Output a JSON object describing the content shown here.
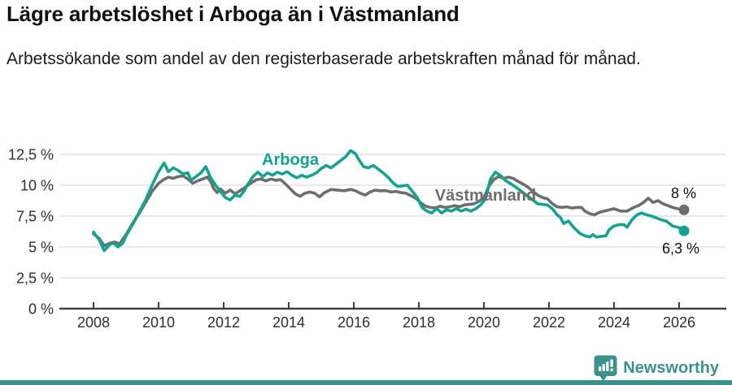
{
  "chart_data": {
    "type": "line",
    "title": "Lägre arbetslöshet i Arboga än i Västmanland",
    "subtitle": "Arbetssökande som andel av den registerbaserade arbetskraften månad för månad.",
    "unit": "%",
    "grid": true,
    "legend": "inline-labels",
    "x_axis": {
      "ticks": [
        2008,
        2010,
        2012,
        2014,
        2016,
        2018,
        2020,
        2022,
        2024,
        2026
      ],
      "range": [
        2007,
        2027.5
      ]
    },
    "y_axis": {
      "tick_values": [
        0,
        2.5,
        5,
        7.5,
        10,
        12.5
      ],
      "tick_labels": [
        "0 %",
        "2,5 %",
        "5 %",
        "7,5 %",
        "10 %",
        "12,5 %"
      ],
      "range": [
        0,
        13.2
      ]
    },
    "series": [
      {
        "name": "Arboga",
        "color": "#14a38f",
        "end_label": "6,3 %",
        "end_value": 6.3,
        "points": [
          [
            2008.0,
            6.2
          ],
          [
            2008.17,
            5.6
          ],
          [
            2008.33,
            4.7
          ],
          [
            2008.5,
            5.2
          ],
          [
            2008.62,
            5.3
          ],
          [
            2008.75,
            5.0
          ],
          [
            2008.9,
            5.3
          ],
          [
            2009.0,
            5.9
          ],
          [
            2009.2,
            6.8
          ],
          [
            2009.4,
            7.8
          ],
          [
            2009.6,
            8.8
          ],
          [
            2009.8,
            10.0
          ],
          [
            2010.0,
            11.1
          ],
          [
            2010.17,
            11.8
          ],
          [
            2010.3,
            11.1
          ],
          [
            2010.45,
            11.4
          ],
          [
            2010.6,
            11.2
          ],
          [
            2010.75,
            10.9
          ],
          [
            2010.9,
            11.0
          ],
          [
            2011.0,
            10.4
          ],
          [
            2011.15,
            10.7
          ],
          [
            2011.3,
            11.0
          ],
          [
            2011.45,
            11.5
          ],
          [
            2011.6,
            10.6
          ],
          [
            2011.75,
            10.0
          ],
          [
            2011.9,
            9.5
          ],
          [
            2012.05,
            9.0
          ],
          [
            2012.2,
            8.8
          ],
          [
            2012.35,
            9.2
          ],
          [
            2012.5,
            9.1
          ],
          [
            2012.62,
            9.5
          ],
          [
            2012.75,
            10.1
          ],
          [
            2012.9,
            10.7
          ],
          [
            2013.05,
            11.05
          ],
          [
            2013.2,
            10.7
          ],
          [
            2013.35,
            11.0
          ],
          [
            2013.5,
            10.8
          ],
          [
            2013.65,
            11.05
          ],
          [
            2013.8,
            10.9
          ],
          [
            2013.95,
            11.1
          ],
          [
            2014.1,
            10.8
          ],
          [
            2014.25,
            10.6
          ],
          [
            2014.4,
            10.8
          ],
          [
            2014.55,
            10.65
          ],
          [
            2014.7,
            10.8
          ],
          [
            2014.85,
            11.0
          ],
          [
            2015.0,
            11.35
          ],
          [
            2015.15,
            11.6
          ],
          [
            2015.3,
            11.4
          ],
          [
            2015.45,
            11.7
          ],
          [
            2015.6,
            12.0
          ],
          [
            2015.75,
            12.3
          ],
          [
            2015.9,
            12.8
          ],
          [
            2016.05,
            12.55
          ],
          [
            2016.15,
            12.1
          ],
          [
            2016.3,
            11.5
          ],
          [
            2016.45,
            11.4
          ],
          [
            2016.6,
            11.6
          ],
          [
            2016.75,
            11.3
          ],
          [
            2016.9,
            11.0
          ],
          [
            2017.05,
            10.65
          ],
          [
            2017.2,
            10.2
          ],
          [
            2017.35,
            9.9
          ],
          [
            2017.5,
            9.95
          ],
          [
            2017.65,
            10.0
          ],
          [
            2017.8,
            9.5
          ],
          [
            2017.95,
            9.0
          ],
          [
            2018.1,
            8.2
          ],
          [
            2018.25,
            7.9
          ],
          [
            2018.4,
            7.75
          ],
          [
            2018.55,
            8.1
          ],
          [
            2018.7,
            7.75
          ],
          [
            2018.85,
            8.0
          ],
          [
            2019.0,
            7.9
          ],
          [
            2019.15,
            8.1
          ],
          [
            2019.3,
            7.9
          ],
          [
            2019.45,
            8.05
          ],
          [
            2019.6,
            7.9
          ],
          [
            2019.75,
            8.1
          ],
          [
            2019.9,
            8.4
          ],
          [
            2020.05,
            8.9
          ],
          [
            2020.2,
            10.5
          ],
          [
            2020.35,
            11.05
          ],
          [
            2020.5,
            10.8
          ],
          [
            2020.65,
            10.4
          ],
          [
            2020.8,
            10.15
          ],
          [
            2020.95,
            9.9
          ],
          [
            2021.1,
            9.6
          ],
          [
            2021.3,
            9.2
          ],
          [
            2021.5,
            8.8
          ],
          [
            2021.65,
            8.5
          ],
          [
            2021.8,
            8.45
          ],
          [
            2021.95,
            8.4
          ],
          [
            2022.1,
            8.1
          ],
          [
            2022.25,
            7.6
          ],
          [
            2022.35,
            7.4
          ],
          [
            2022.45,
            6.9
          ],
          [
            2022.6,
            7.1
          ],
          [
            2022.75,
            6.6
          ],
          [
            2022.95,
            6.1
          ],
          [
            2023.1,
            5.9
          ],
          [
            2023.25,
            5.8
          ],
          [
            2023.35,
            6.0
          ],
          [
            2023.45,
            5.8
          ],
          [
            2023.6,
            5.85
          ],
          [
            2023.75,
            5.9
          ],
          [
            2023.85,
            6.4
          ],
          [
            2024.0,
            6.7
          ],
          [
            2024.15,
            6.8
          ],
          [
            2024.3,
            6.8
          ],
          [
            2024.4,
            6.6
          ],
          [
            2024.55,
            7.2
          ],
          [
            2024.7,
            7.6
          ],
          [
            2024.85,
            7.75
          ],
          [
            2025.0,
            7.6
          ],
          [
            2025.15,
            7.5
          ],
          [
            2025.3,
            7.35
          ],
          [
            2025.45,
            7.2
          ],
          [
            2025.6,
            7.1
          ],
          [
            2025.7,
            6.9
          ],
          [
            2025.8,
            6.7
          ],
          [
            2025.95,
            6.6
          ],
          [
            2026.05,
            6.5
          ],
          [
            2026.15,
            6.3
          ]
        ]
      },
      {
        "name": "Västmanland",
        "color": "#6e6e6e",
        "end_label": "8 %",
        "end_value": 8.0,
        "points": [
          [
            2008.0,
            6.05
          ],
          [
            2008.17,
            5.7
          ],
          [
            2008.33,
            5.1
          ],
          [
            2008.5,
            5.3
          ],
          [
            2008.65,
            5.4
          ],
          [
            2008.8,
            5.25
          ],
          [
            2009.0,
            6.0
          ],
          [
            2009.2,
            6.9
          ],
          [
            2009.4,
            7.7
          ],
          [
            2009.6,
            8.6
          ],
          [
            2009.8,
            9.5
          ],
          [
            2010.0,
            10.15
          ],
          [
            2010.15,
            10.45
          ],
          [
            2010.3,
            10.65
          ],
          [
            2010.45,
            10.55
          ],
          [
            2010.6,
            10.7
          ],
          [
            2010.75,
            10.75
          ],
          [
            2010.9,
            10.5
          ],
          [
            2011.05,
            10.15
          ],
          [
            2011.2,
            10.35
          ],
          [
            2011.35,
            10.5
          ],
          [
            2011.5,
            10.65
          ],
          [
            2011.6,
            10.3
          ],
          [
            2011.7,
            9.7
          ],
          [
            2011.8,
            9.4
          ],
          [
            2011.9,
            9.7
          ],
          [
            2012.05,
            9.35
          ],
          [
            2012.2,
            9.6
          ],
          [
            2012.35,
            9.3
          ],
          [
            2012.5,
            9.55
          ],
          [
            2012.65,
            9.8
          ],
          [
            2012.8,
            10.1
          ],
          [
            2013.0,
            10.45
          ],
          [
            2013.15,
            10.5
          ],
          [
            2013.3,
            10.35
          ],
          [
            2013.45,
            10.5
          ],
          [
            2013.6,
            10.4
          ],
          [
            2013.75,
            10.45
          ],
          [
            2013.9,
            10.1
          ],
          [
            2014.05,
            9.7
          ],
          [
            2014.2,
            9.3
          ],
          [
            2014.35,
            9.1
          ],
          [
            2014.5,
            9.35
          ],
          [
            2014.65,
            9.45
          ],
          [
            2014.8,
            9.35
          ],
          [
            2014.95,
            9.05
          ],
          [
            2015.1,
            9.4
          ],
          [
            2015.3,
            9.65
          ],
          [
            2015.5,
            9.6
          ],
          [
            2015.7,
            9.55
          ],
          [
            2015.9,
            9.65
          ],
          [
            2016.05,
            9.55
          ],
          [
            2016.2,
            9.35
          ],
          [
            2016.35,
            9.2
          ],
          [
            2016.5,
            9.45
          ],
          [
            2016.65,
            9.6
          ],
          [
            2016.8,
            9.55
          ],
          [
            2017.0,
            9.55
          ],
          [
            2017.15,
            9.45
          ],
          [
            2017.3,
            9.5
          ],
          [
            2017.45,
            9.4
          ],
          [
            2017.6,
            9.35
          ],
          [
            2017.75,
            9.15
          ],
          [
            2017.9,
            8.95
          ],
          [
            2018.05,
            8.6
          ],
          [
            2018.2,
            8.3
          ],
          [
            2018.35,
            8.2
          ],
          [
            2018.5,
            8.15
          ],
          [
            2018.65,
            8.3
          ],
          [
            2018.8,
            8.2
          ],
          [
            2018.95,
            8.25
          ],
          [
            2019.1,
            8.35
          ],
          [
            2019.25,
            8.25
          ],
          [
            2019.4,
            8.4
          ],
          [
            2019.55,
            8.45
          ],
          [
            2019.7,
            8.5
          ],
          [
            2019.85,
            8.7
          ],
          [
            2020.0,
            9.0
          ],
          [
            2020.15,
            9.9
          ],
          [
            2020.3,
            10.45
          ],
          [
            2020.45,
            10.7
          ],
          [
            2020.6,
            10.55
          ],
          [
            2020.75,
            10.65
          ],
          [
            2020.9,
            10.55
          ],
          [
            2021.05,
            10.3
          ],
          [
            2021.2,
            10.1
          ],
          [
            2021.35,
            9.85
          ],
          [
            2021.5,
            9.5
          ],
          [
            2021.65,
            9.2
          ],
          [
            2021.8,
            9.0
          ],
          [
            2021.95,
            8.9
          ],
          [
            2022.1,
            8.5
          ],
          [
            2022.25,
            8.25
          ],
          [
            2022.4,
            8.2
          ],
          [
            2022.55,
            8.25
          ],
          [
            2022.7,
            8.15
          ],
          [
            2022.85,
            8.2
          ],
          [
            2023.0,
            8.2
          ],
          [
            2023.1,
            7.9
          ],
          [
            2023.25,
            7.7
          ],
          [
            2023.4,
            7.6
          ],
          [
            2023.55,
            7.8
          ],
          [
            2023.7,
            7.9
          ],
          [
            2023.85,
            8.0
          ],
          [
            2024.0,
            8.1
          ],
          [
            2024.2,
            7.9
          ],
          [
            2024.4,
            7.9
          ],
          [
            2024.6,
            8.2
          ],
          [
            2024.75,
            8.35
          ],
          [
            2024.9,
            8.6
          ],
          [
            2025.05,
            8.95
          ],
          [
            2025.2,
            8.6
          ],
          [
            2025.35,
            8.75
          ],
          [
            2025.5,
            8.5
          ],
          [
            2025.65,
            8.35
          ],
          [
            2025.8,
            8.2
          ],
          [
            2025.95,
            8.1
          ],
          [
            2026.15,
            8.0
          ]
        ]
      }
    ]
  },
  "style": {
    "accent_teal": "#14a38f",
    "brand_teal": "#3c928a",
    "grid_color": "#dcdcdc",
    "axis_color": "#3f3f3f"
  },
  "footer": {
    "brand": "Newsworthy"
  }
}
